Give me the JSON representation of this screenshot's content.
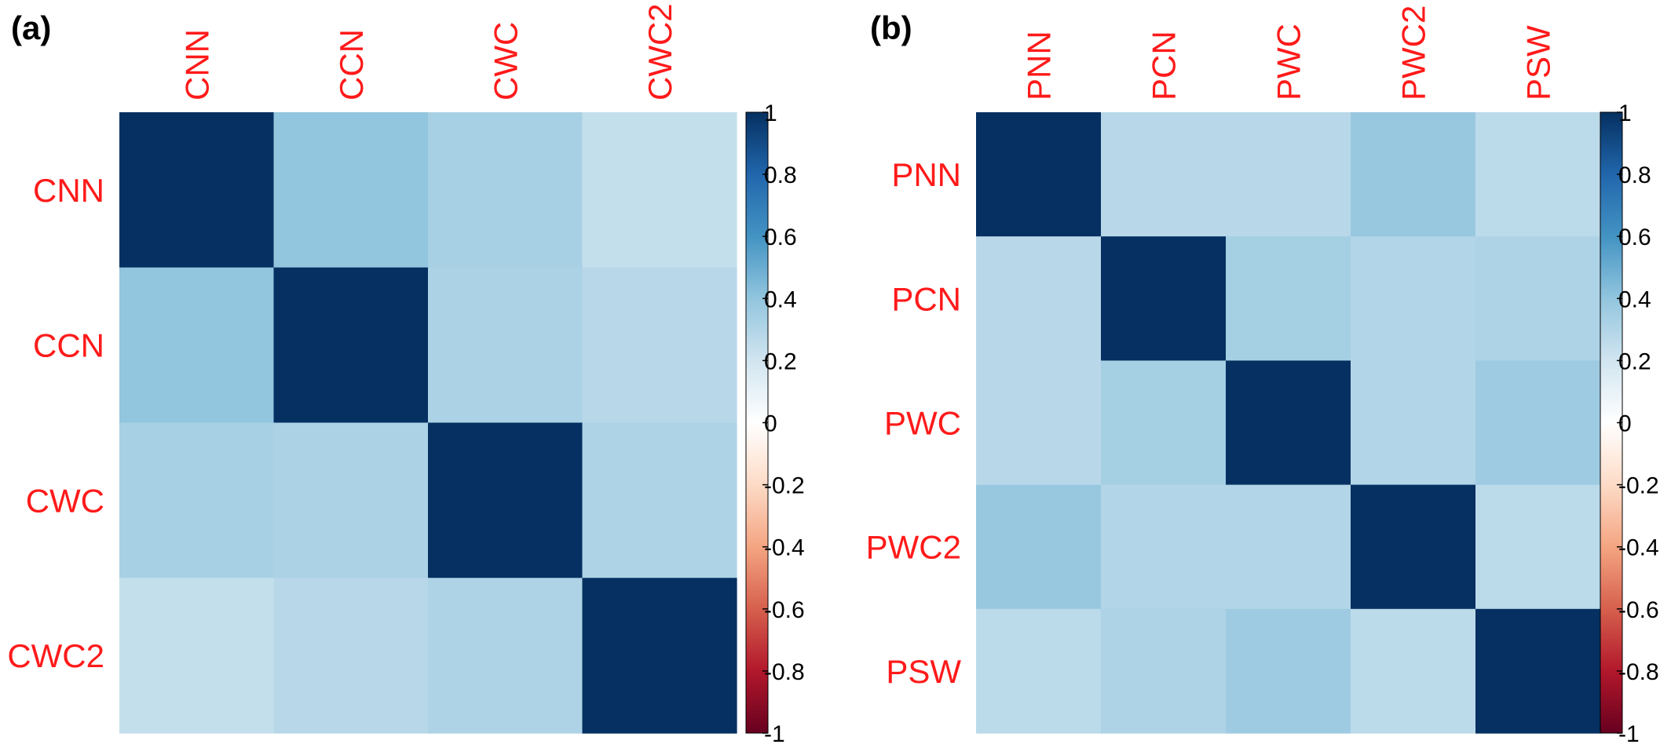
{
  "chart_data": [
    {
      "type": "heatmap",
      "panel_label": "(a)",
      "rows": [
        "CNN",
        "CCN",
        "CWC",
        "CWC2"
      ],
      "columns": [
        "CNN",
        "CCN",
        "CWC",
        "CWC2"
      ],
      "values": [
        [
          1.0,
          0.4,
          0.33,
          0.24
        ],
        [
          0.4,
          1.0,
          0.32,
          0.28
        ],
        [
          0.33,
          0.32,
          1.0,
          0.31
        ],
        [
          0.24,
          0.28,
          0.31,
          1.0
        ]
      ],
      "colorbar": {
        "range": [
          -1,
          1
        ],
        "tick_labels": [
          "1",
          "0.8",
          "0.6",
          "0.4",
          "0.2",
          "0",
          "-0.2",
          "-0.4",
          "-0.6",
          "-0.8",
          "-1"
        ]
      }
    },
    {
      "type": "heatmap",
      "panel_label": "(b)",
      "rows": [
        "PNN",
        "PCN",
        "PWC",
        "PWC2",
        "PSW"
      ],
      "columns": [
        "PNN",
        "PCN",
        "PWC",
        "PWC2",
        "PSW"
      ],
      "values": [
        [
          1.0,
          0.28,
          0.28,
          0.38,
          0.27
        ],
        [
          0.28,
          1.0,
          0.34,
          0.3,
          0.31
        ],
        [
          0.28,
          0.34,
          1.0,
          0.3,
          0.36
        ],
        [
          0.38,
          0.3,
          0.3,
          1.0,
          0.27
        ],
        [
          0.27,
          0.31,
          0.36,
          0.27,
          1.0
        ]
      ],
      "colorbar": {
        "range": [
          -1,
          1
        ],
        "tick_labels": [
          "1",
          "0.8",
          "0.6",
          "0.4",
          "0.2",
          "0",
          "-0.2",
          "-0.4",
          "-0.6",
          "-0.8",
          "-1"
        ]
      }
    }
  ],
  "colors": {
    "label_color": "#ff1a1a",
    "diverging_scale": [
      "#67001f",
      "#b2182b",
      "#d6604d",
      "#f4a582",
      "#fddbc7",
      "#ffffff",
      "#d1e5f0",
      "#92c5de",
      "#4393c3",
      "#2166ac",
      "#053061"
    ]
  }
}
